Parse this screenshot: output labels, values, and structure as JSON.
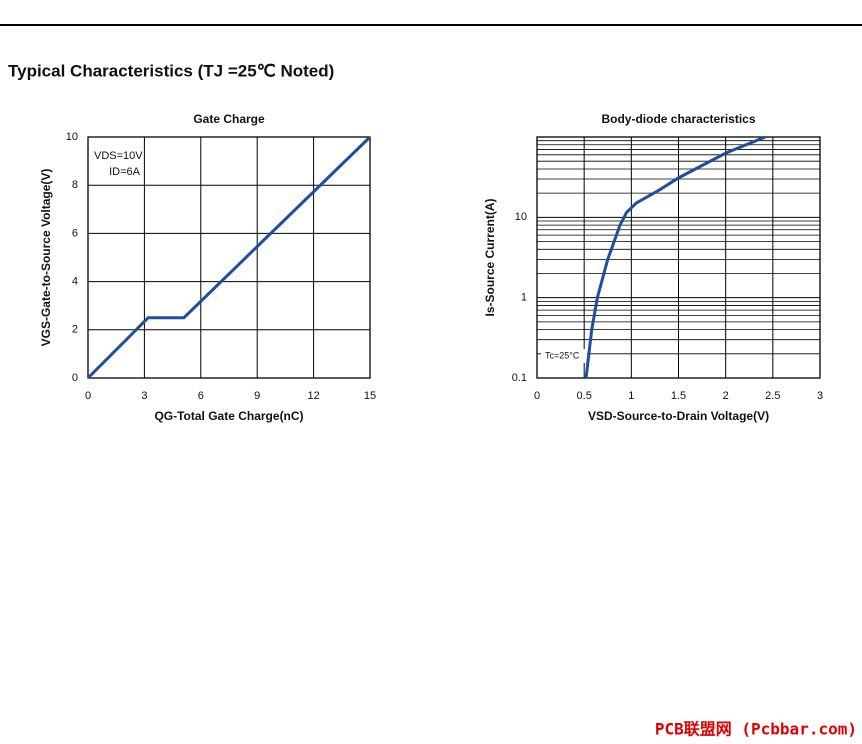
{
  "heading": "Typical Characteristics (TJ =25℃ Noted)",
  "watermark": "PCB联盟网 (Pcbbar.com)",
  "chart_data": [
    {
      "type": "line",
      "title": "Gate Charge",
      "x_label": "QG-Total Gate Charge(nC)",
      "y_label": "VGS-Gate-to-Source Voltage(V)",
      "x": [
        0,
        3.2,
        5.1,
        15
      ],
      "series": [
        {
          "color": "#1f4e9c",
          "values": [
            0,
            2.5,
            2.5,
            10
          ]
        }
      ],
      "xlim": [
        0,
        15
      ],
      "xticks": [
        0,
        3,
        6,
        9,
        12,
        15
      ],
      "ylim": [
        0,
        10
      ],
      "yticks": [
        0,
        2,
        4,
        6,
        8,
        10
      ],
      "grid": true,
      "annotations": [
        "VDS=10V",
        "ID=6A"
      ]
    },
    {
      "type": "line",
      "title": "Body-diode characteristics",
      "x_label": "VSD-Source-to-Drain Voltage(V)",
      "y_label": "Is-Source Current(A)",
      "x": [
        0.52,
        0.58,
        0.64,
        0.75,
        0.88,
        0.95,
        1.05,
        1.3,
        1.5,
        2,
        2.42
      ],
      "series": [
        {
          "color": "#1f4e9c",
          "values": [
            0.1,
            0.4,
            1,
            3,
            8,
            11.5,
            15,
            22,
            31,
            63,
            100
          ]
        }
      ],
      "xlim": [
        0,
        3
      ],
      "xticks": [
        0,
        0.5,
        1,
        1.5,
        2,
        2.5,
        3
      ],
      "ylim": [
        0.1,
        100
      ],
      "yticks": [
        0.1,
        1,
        10
      ],
      "y_scale": "log",
      "grid": true,
      "annotations": [
        "Tc=25°C"
      ]
    }
  ]
}
